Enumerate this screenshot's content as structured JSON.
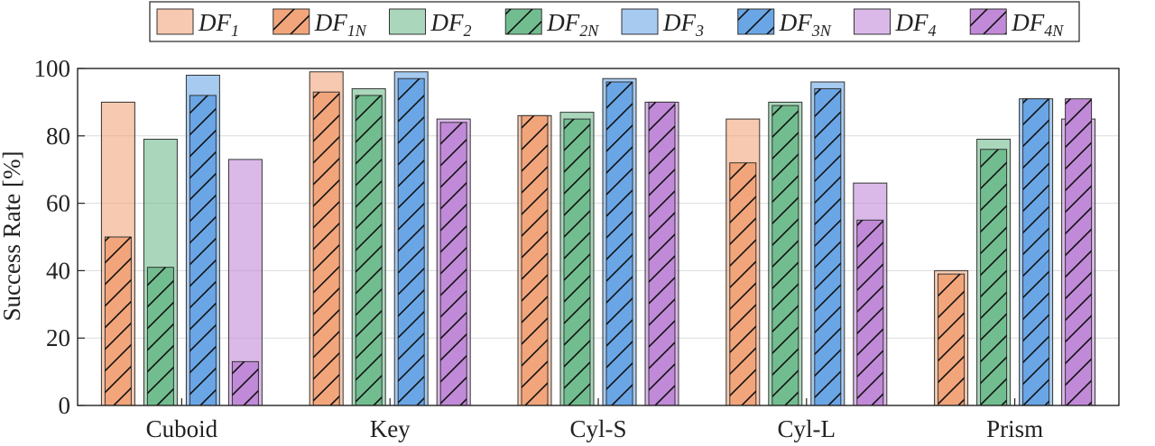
{
  "chart_data": {
    "type": "bar",
    "categories": [
      "Cuboid",
      "Key",
      "Cyl-S",
      "Cyl-L",
      "Prism"
    ],
    "ylabel": "Success Rate [%]",
    "ylim": [
      0,
      100
    ],
    "yticks": [
      0,
      20,
      40,
      60,
      80,
      100
    ],
    "grid": true,
    "legend_placement": "top-center",
    "groups": [
      {
        "color": "#f2a57b",
        "base": {
          "name": "DF",
          "sub": "1",
          "values": [
            90,
            99,
            86,
            85,
            40
          ]
        },
        "noisy": {
          "name": "DF",
          "sub": "1N",
          "values": [
            50,
            93,
            86,
            72,
            39
          ]
        }
      },
      {
        "color": "#72bd8f",
        "base": {
          "name": "DF",
          "sub": "2",
          "values": [
            79,
            94,
            87,
            90,
            79
          ]
        },
        "noisy": {
          "name": "DF",
          "sub": "2N",
          "values": [
            41,
            92,
            85,
            89,
            76
          ]
        }
      },
      {
        "color": "#6aa6e6",
        "base": {
          "name": "DF",
          "sub": "3",
          "values": [
            98,
            99,
            97,
            96,
            91
          ]
        },
        "noisy": {
          "name": "DF",
          "sub": "3N",
          "values": [
            92,
            97,
            96,
            94,
            91
          ]
        }
      },
      {
        "color": "#c18ad8",
        "base": {
          "name": "DF",
          "sub": "4",
          "values": [
            73,
            85,
            90,
            66,
            85
          ]
        },
        "noisy": {
          "name": "DF",
          "sub": "4N",
          "values": [
            13,
            84,
            90,
            55,
            91
          ]
        }
      }
    ]
  }
}
